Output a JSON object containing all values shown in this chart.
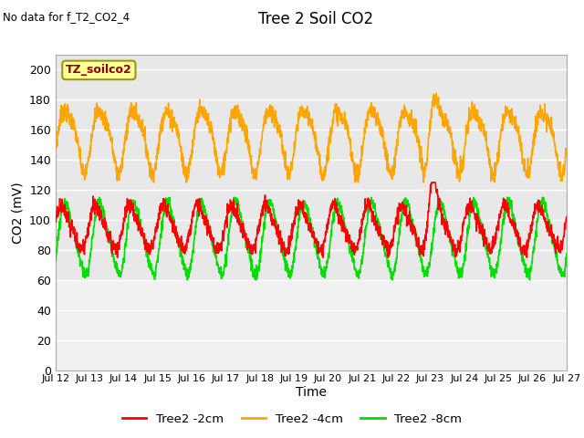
{
  "title": "Tree 2 Soil CO2",
  "no_data_text": "No data for f_T2_CO2_4",
  "ylabel": "CO2 (mV)",
  "xlabel": "Time",
  "legend_label": "TZ_soilco2",
  "ylim": [
    0,
    210
  ],
  "yticks": [
    0,
    20,
    40,
    60,
    80,
    100,
    120,
    140,
    160,
    180,
    200
  ],
  "xtick_labels": [
    "Jul 12",
    "Jul 13",
    "Jul 14",
    "Jul 15",
    "Jul 16",
    "Jul 17",
    "Jul 18",
    "Jul 19",
    "Jul 20",
    "Jul 21",
    "Jul 22",
    "Jul 23",
    "Jul 24",
    "Jul 25",
    "Jul 26",
    "Jul 27"
  ],
  "color_2cm": "#ff0000",
  "color_4cm": "#ffa500",
  "color_8cm": "#00dd00",
  "fig_bg_color": "#ffffff",
  "plot_bg_color": "#e8e8e8",
  "plot_top_bg": "#f5f5f5",
  "legend_series": [
    "Tree2 -2cm",
    "Tree2 -4cm",
    "Tree2 -8cm"
  ],
  "line_width": 1.2
}
